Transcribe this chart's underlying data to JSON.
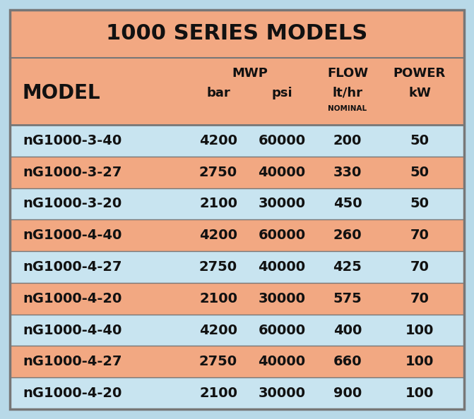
{
  "title": "1000 SERIES MODELS",
  "outer_bg": "#B8D9E8",
  "table_bg": "#F2A882",
  "row_colors": [
    "#C8E4F0",
    "#F2A882",
    "#C8E4F0",
    "#F2A882",
    "#C8E4F0",
    "#F2A882",
    "#C8E4F0",
    "#F2A882",
    "#C8E4F0"
  ],
  "rows": [
    [
      "nG1000-3-40",
      "4200",
      "60000",
      "200",
      "50"
    ],
    [
      "nG1000-3-27",
      "2750",
      "40000",
      "330",
      "50"
    ],
    [
      "nG1000-3-20",
      "2100",
      "30000",
      "450",
      "50"
    ],
    [
      "nG1000-4-40",
      "4200",
      "60000",
      "260",
      "70"
    ],
    [
      "nG1000-4-27",
      "2750",
      "40000",
      "425",
      "70"
    ],
    [
      "nG1000-4-20",
      "2100",
      "30000",
      "575",
      "70"
    ],
    [
      "nG1000-4-40",
      "4200",
      "60000",
      "400",
      "100"
    ],
    [
      "nG1000-4-27",
      "2750",
      "40000",
      "660",
      "100"
    ],
    [
      "nG1000-4-20",
      "2100",
      "30000",
      "900",
      "100"
    ]
  ],
  "text_color": "#111111",
  "border_color": "#777777",
  "figwidth": 6.71,
  "figheight": 5.94,
  "dpi": 100
}
